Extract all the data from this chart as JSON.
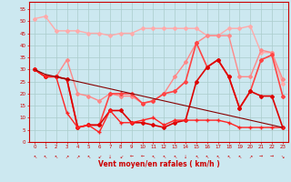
{
  "x": [
    0,
    1,
    2,
    3,
    4,
    5,
    6,
    7,
    8,
    9,
    10,
    11,
    12,
    13,
    14,
    15,
    16,
    17,
    18,
    19,
    20,
    21,
    22,
    23
  ],
  "series": [
    {
      "color": "#ffaaaa",
      "linewidth": 1.0,
      "marker": "D",
      "markersize": 2.0,
      "values": [
        51,
        52,
        46,
        46,
        46,
        45,
        45,
        44,
        45,
        45,
        47,
        47,
        47,
        47,
        47,
        47,
        44,
        44,
        47,
        47,
        48,
        37,
        37,
        24
      ]
    },
    {
      "color": "#ff8888",
      "linewidth": 1.0,
      "marker": "D",
      "markersize": 2.0,
      "values": [
        30,
        27,
        27,
        34,
        20,
        19,
        17,
        20,
        19,
        19,
        16,
        17,
        20,
        27,
        33,
        41,
        44,
        44,
        44,
        27,
        27,
        38,
        37,
        26
      ]
    },
    {
      "color": "#ff4444",
      "linewidth": 1.2,
      "marker": "D",
      "markersize": 2.0,
      "values": [
        30,
        27,
        27,
        26,
        6,
        7,
        7,
        20,
        20,
        20,
        16,
        17,
        20,
        21,
        25,
        41,
        31,
        34,
        27,
        14,
        21,
        34,
        36,
        19
      ]
    },
    {
      "color": "#dd0000",
      "linewidth": 1.2,
      "marker": "D",
      "markersize": 2.0,
      "values": [
        30,
        27,
        27,
        26,
        6,
        7,
        7,
        13,
        13,
        8,
        8,
        7,
        6,
        8,
        9,
        25,
        31,
        34,
        27,
        14,
        21,
        19,
        19,
        6
      ]
    },
    {
      "color": "#ff2222",
      "linewidth": 1.0,
      "marker": "+",
      "markersize": 3.5,
      "values": [
        30,
        27,
        27,
        12,
        6,
        7,
        4,
        13,
        8,
        8,
        9,
        10,
        7,
        9,
        9,
        9,
        9,
        9,
        8,
        6,
        6,
        6,
        6,
        6
      ]
    },
    {
      "color": "#880000",
      "linewidth": 0.8,
      "marker": null,
      "markersize": 0,
      "values": [
        30,
        28,
        27,
        26,
        25,
        24,
        23,
        22,
        21,
        20,
        19,
        18,
        17,
        16,
        15,
        14,
        13,
        12,
        11,
        10,
        9,
        8,
        7,
        6
      ]
    }
  ],
  "wind_arrows": [
    "NW",
    "NW",
    "NW",
    "NE",
    "NE",
    "NW",
    "SW",
    "S",
    "SW",
    "W",
    "W",
    "NW",
    "NW",
    "NW",
    "S",
    "NW",
    "NW",
    "NW",
    "NW",
    "NW",
    "NE",
    "E",
    "E",
    "SE"
  ],
  "xlabel": "Vent moyen/en rafales ( km/h )",
  "ylim": [
    0,
    58
  ],
  "yticks": [
    0,
    5,
    10,
    15,
    20,
    25,
    30,
    35,
    40,
    45,
    50,
    55
  ],
  "xticks": [
    0,
    1,
    2,
    3,
    4,
    5,
    6,
    7,
    8,
    9,
    10,
    11,
    12,
    13,
    14,
    15,
    16,
    17,
    18,
    19,
    20,
    21,
    22,
    23
  ],
  "bg_color": "#cce8f0",
  "grid_color": "#aacccc",
  "axis_color": "#cc0000",
  "label_color": "#cc0000",
  "tick_color": "#cc0000"
}
